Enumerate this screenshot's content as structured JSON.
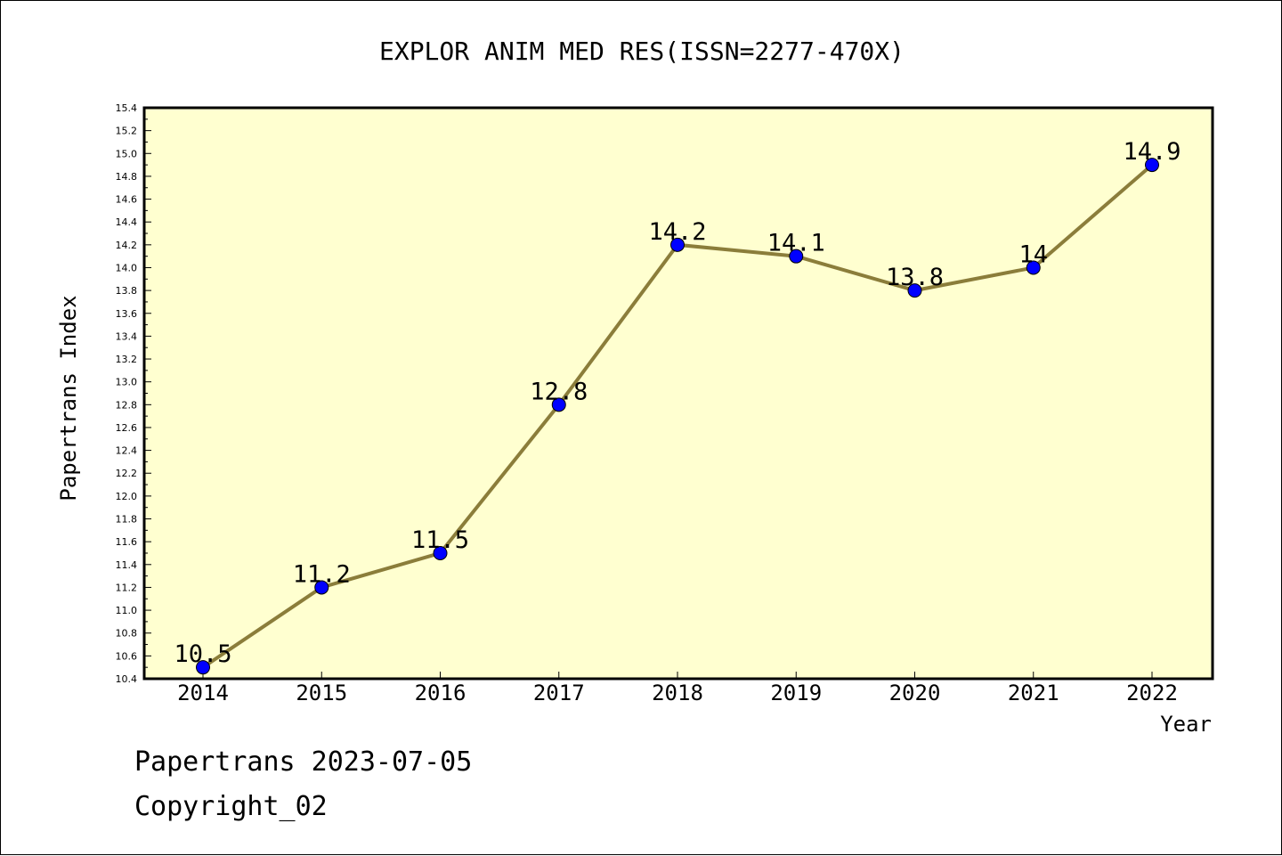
{
  "chart_data": {
    "type": "line",
    "title": "EXPLOR ANIM MED RES(ISSN=2277-470X)",
    "xlabel": "Year",
    "ylabel": "Papertrans Index",
    "categories": [
      "2014",
      "2015",
      "2016",
      "2017",
      "2018",
      "2019",
      "2020",
      "2021",
      "2022"
    ],
    "series": [
      {
        "values": [
          10.5,
          11.2,
          11.5,
          12.8,
          14.2,
          14.1,
          13.8,
          14,
          14.9
        ],
        "labels": [
          "10.5",
          "11.2",
          "11.5",
          "12.8",
          "14.2",
          "14.1",
          "13.8",
          "14",
          "14.9"
        ]
      }
    ],
    "ylim": [
      10.4,
      15.4
    ],
    "yticks": [
      "10.4",
      "10.6",
      "10.8",
      "11.0",
      "11.2",
      "11.4",
      "11.6",
      "11.8",
      "12.0",
      "12.2",
      "12.4",
      "12.6",
      "12.8",
      "13.0",
      "13.2",
      "13.4",
      "13.6",
      "13.8",
      "14.0",
      "14.2",
      "14.4",
      "14.6",
      "14.8",
      "15.0",
      "15.2",
      "15.4"
    ],
    "grid": false,
    "colors": {
      "plot_background": "#ffffd0",
      "line": "#8b7d3a",
      "marker": "#0000ff"
    }
  },
  "footer": {
    "line1": "Papertrans 2023-07-05",
    "line2": "Copyright_02"
  }
}
